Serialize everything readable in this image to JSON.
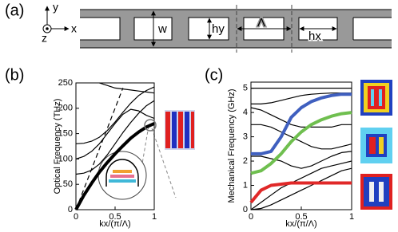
{
  "diagram": {
    "label": "(a)",
    "axis_y": "y",
    "axis_x": "x",
    "axis_z": "z",
    "width": "w",
    "hole_height": "hy",
    "period": "Λ",
    "hole_width": "hx"
  },
  "chart_data": [
    {
      "type": "line",
      "label": "(b)",
      "y_label": "Optical Frequency (THz)",
      "x_label": "kx/(π/Λ)",
      "x": [
        0,
        0.1,
        0.2,
        0.3,
        0.4,
        0.5,
        0.6,
        0.7,
        0.8,
        0.9,
        1
      ],
      "xlim": [
        0,
        1
      ],
      "ylim": [
        0,
        250
      ],
      "xticks": [
        0,
        0.5,
        1
      ],
      "yticks": [
        0,
        50,
        100,
        150,
        200,
        250
      ],
      "series": [
        {
          "color": "#000000",
          "linewidth": 1.2,
          "values": [
            70,
            72,
            78,
            90,
            108,
            130,
            152,
            172,
            190,
            205,
            215
          ]
        },
        {
          "color": "#000000",
          "linewidth": 1.2,
          "values": [
            130,
            131,
            135,
            143,
            156,
            173,
            192,
            210,
            225,
            235,
            242
          ]
        },
        {
          "color": "#000000",
          "linewidth": 1.2,
          "values": [
            null,
            null,
            null,
            250,
            245,
            240,
            238,
            236,
            234,
            232,
            230
          ]
        },
        {
          "color": "#000000",
          "linewidth": 1.2,
          "values": [
            100,
            105,
            115,
            130,
            150,
            170,
            188,
            198,
            195,
            186,
            180
          ]
        },
        {
          "color": "#000000",
          "linewidth": 4,
          "values": [
            0,
            28,
            52,
            74,
            93,
            110,
            126,
            141,
            153,
            163,
            170
          ]
        },
        {
          "color": "#000000",
          "linewidth": 1.2,
          "linestyle": "dashed",
          "values": [
            0,
            40,
            80,
            120,
            160,
            200,
            240,
            null,
            null,
            null,
            null
          ]
        }
      ]
    },
    {
      "type": "line",
      "label": "(c)",
      "y_label": "Mechanical Frequency (GHz)",
      "x_label": "kx/(π/Λ)",
      "x": [
        0,
        0.1,
        0.2,
        0.3,
        0.4,
        0.5,
        0.6,
        0.7,
        0.8,
        0.9,
        1
      ],
      "xlim": [
        0,
        1
      ],
      "ylim": [
        0,
        5.25
      ],
      "xticks": [
        0,
        0.5,
        1
      ],
      "yticks": [
        0,
        1,
        2,
        3,
        4,
        5
      ],
      "series": [
        {
          "color": "#000000",
          "linewidth": 1.2,
          "values": [
            0,
            0.3,
            0.6,
            0.9,
            1.1,
            1.3,
            1.5,
            1.7,
            1.8,
            1.9,
            2.0
          ]
        },
        {
          "color": "#000000",
          "linewidth": 1.2,
          "values": [
            0,
            0.05,
            0.2,
            0.4,
            0.6,
            0.8,
            1.0,
            1.2,
            1.4,
            1.6,
            1.7
          ]
        },
        {
          "color": "#000000",
          "linewidth": 1.2,
          "values": [
            2.2,
            2.2,
            2.1,
            2.0,
            1.8,
            1.7,
            1.8,
            2.0,
            2.2,
            2.35,
            2.4
          ]
        },
        {
          "color": "#000000",
          "linewidth": 1.2,
          "values": [
            3.5,
            3.5,
            3.4,
            3.2,
            3.0,
            2.8,
            2.6,
            2.5,
            2.5,
            2.6,
            2.7
          ]
        },
        {
          "color": "#000000",
          "linewidth": 1.2,
          "values": [
            4.2,
            4.1,
            3.9,
            3.7,
            3.5,
            3.4,
            3.4,
            3.4,
            3.4,
            3.5,
            3.5
          ]
        },
        {
          "color": "#000000",
          "linewidth": 1.2,
          "values": [
            5.0,
            5.0,
            5.0,
            5.0,
            5.0,
            5.0,
            5.0,
            5.0,
            5.0,
            5.0,
            5.0
          ]
        },
        {
          "color": "#000000",
          "linewidth": 1.2,
          "values": [
            4.35,
            4.35,
            4.4,
            4.5,
            4.6,
            4.7,
            4.75,
            4.78,
            4.8,
            4.8,
            4.8
          ]
        },
        {
          "color": "#3f5fbf",
          "linewidth": 4,
          "values": [
            2.3,
            2.3,
            2.4,
            3.0,
            3.8,
            4.2,
            4.45,
            4.6,
            4.7,
            4.75,
            4.75
          ]
        },
        {
          "color": "#6fbf4f",
          "linewidth": 4,
          "values": [
            1.5,
            1.6,
            1.9,
            2.3,
            2.8,
            3.2,
            3.5,
            3.7,
            3.85,
            3.95,
            4.0
          ]
        },
        {
          "color": "#e02828",
          "linewidth": 4,
          "values": [
            0.3,
            0.8,
            1.0,
            1.05,
            1.1,
            1.1,
            1.1,
            1.1,
            1.1,
            1.1,
            1.1
          ]
        }
      ]
    }
  ]
}
